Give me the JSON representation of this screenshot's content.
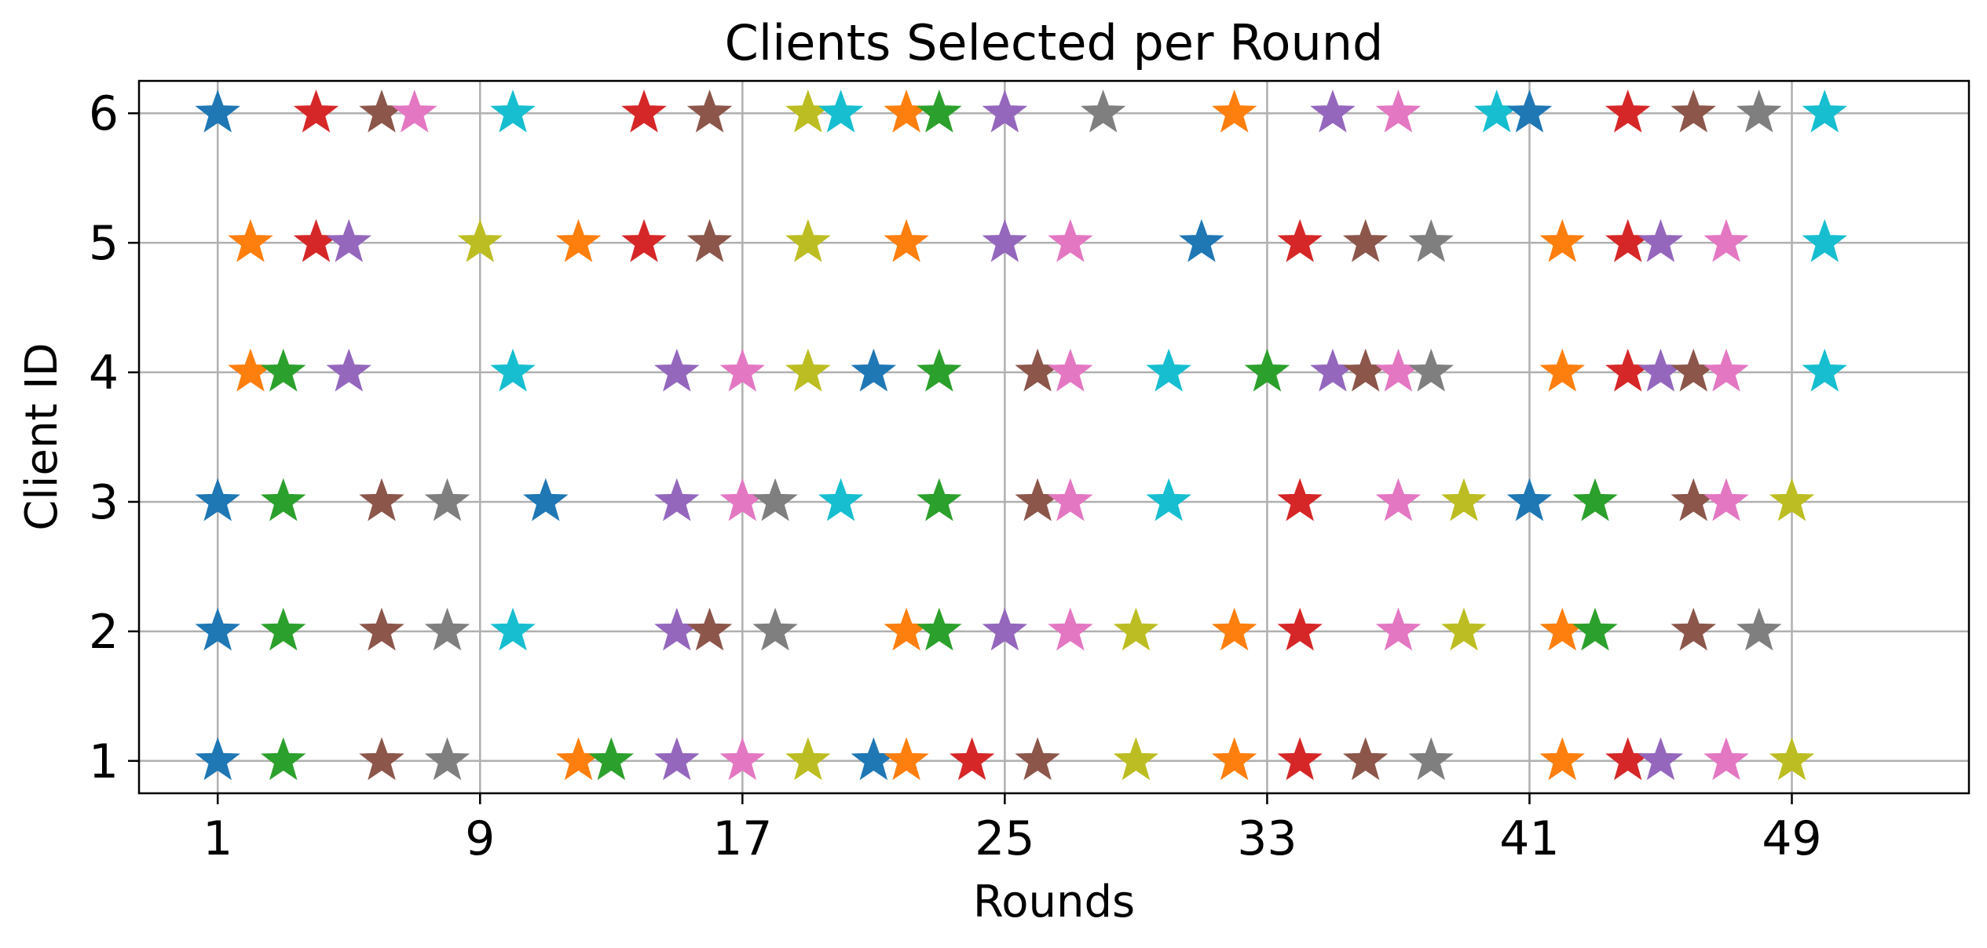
{
  "chart_data": {
    "type": "scatter",
    "title": "Clients Selected per Round",
    "xlabel": "Rounds",
    "ylabel": "Client ID",
    "xlim": [
      -1.4,
      54.4
    ],
    "ylim": [
      0.75,
      6.25
    ],
    "xticks": [
      1,
      9,
      17,
      25,
      33,
      41,
      49
    ],
    "yticks": [
      1,
      2,
      3,
      4,
      5,
      6
    ],
    "grid": true,
    "marker": "star",
    "color_cycle": [
      "#1f77b4",
      "#ff7f0e",
      "#2ca02c",
      "#d62728",
      "#9467bd",
      "#8c564b",
      "#e377c2",
      "#7f7f7f",
      "#bcbd22",
      "#17becf"
    ],
    "rounds": [
      {
        "round": 1,
        "clients": [
          1,
          2,
          3,
          6
        ]
      },
      {
        "round": 2,
        "clients": [
          4,
          5
        ]
      },
      {
        "round": 3,
        "clients": [
          1,
          2,
          3,
          4
        ]
      },
      {
        "round": 4,
        "clients": [
          5,
          6
        ]
      },
      {
        "round": 5,
        "clients": [
          4,
          5
        ]
      },
      {
        "round": 6,
        "clients": [
          1,
          2,
          3,
          6
        ]
      },
      {
        "round": 7,
        "clients": [
          6
        ]
      },
      {
        "round": 8,
        "clients": [
          1,
          2,
          3
        ]
      },
      {
        "round": 9,
        "clients": [
          5
        ]
      },
      {
        "round": 10,
        "clients": [
          2,
          4,
          6
        ]
      },
      {
        "round": 11,
        "clients": [
          3
        ]
      },
      {
        "round": 12,
        "clients": [
          1,
          5
        ]
      },
      {
        "round": 13,
        "clients": [
          1
        ]
      },
      {
        "round": 14,
        "clients": [
          5,
          6
        ]
      },
      {
        "round": 15,
        "clients": [
          1,
          2,
          3,
          4
        ]
      },
      {
        "round": 16,
        "clients": [
          2,
          5,
          6
        ]
      },
      {
        "round": 17,
        "clients": [
          1,
          3,
          4
        ]
      },
      {
        "round": 18,
        "clients": [
          2,
          3
        ]
      },
      {
        "round": 19,
        "clients": [
          1,
          4,
          5,
          6
        ]
      },
      {
        "round": 20,
        "clients": [
          3,
          6
        ]
      },
      {
        "round": 21,
        "clients": [
          1,
          4
        ]
      },
      {
        "round": 22,
        "clients": [
          1,
          2,
          5,
          6
        ]
      },
      {
        "round": 23,
        "clients": [
          2,
          3,
          4,
          6
        ]
      },
      {
        "round": 24,
        "clients": [
          1
        ]
      },
      {
        "round": 25,
        "clients": [
          2,
          5,
          6
        ]
      },
      {
        "round": 26,
        "clients": [
          1,
          3,
          4
        ]
      },
      {
        "round": 27,
        "clients": [
          2,
          3,
          4,
          5
        ]
      },
      {
        "round": 28,
        "clients": [
          6
        ]
      },
      {
        "round": 29,
        "clients": [
          1,
          2
        ]
      },
      {
        "round": 30,
        "clients": [
          3,
          4
        ]
      },
      {
        "round": 31,
        "clients": [
          5
        ]
      },
      {
        "round": 32,
        "clients": [
          1,
          2,
          6
        ]
      },
      {
        "round": 33,
        "clients": [
          4
        ]
      },
      {
        "round": 34,
        "clients": [
          1,
          2,
          3,
          5
        ]
      },
      {
        "round": 35,
        "clients": [
          4,
          6
        ]
      },
      {
        "round": 36,
        "clients": [
          1,
          4,
          5
        ]
      },
      {
        "round": 37,
        "clients": [
          2,
          3,
          4,
          6
        ]
      },
      {
        "round": 38,
        "clients": [
          1,
          4,
          5
        ]
      },
      {
        "round": 39,
        "clients": [
          2,
          3
        ]
      },
      {
        "round": 40,
        "clients": [
          6
        ]
      },
      {
        "round": 41,
        "clients": [
          3,
          6
        ]
      },
      {
        "round": 42,
        "clients": [
          1,
          2,
          4,
          5
        ]
      },
      {
        "round": 43,
        "clients": [
          2,
          3
        ]
      },
      {
        "round": 44,
        "clients": [
          1,
          4,
          5,
          6
        ]
      },
      {
        "round": 45,
        "clients": [
          1,
          4,
          5
        ]
      },
      {
        "round": 46,
        "clients": [
          2,
          3,
          4,
          6
        ]
      },
      {
        "round": 47,
        "clients": [
          1,
          3,
          4,
          5
        ]
      },
      {
        "round": 48,
        "clients": [
          2,
          6
        ]
      },
      {
        "round": 49,
        "clients": [
          1,
          3
        ]
      },
      {
        "round": 50,
        "clients": [
          4,
          5,
          6
        ]
      }
    ]
  }
}
